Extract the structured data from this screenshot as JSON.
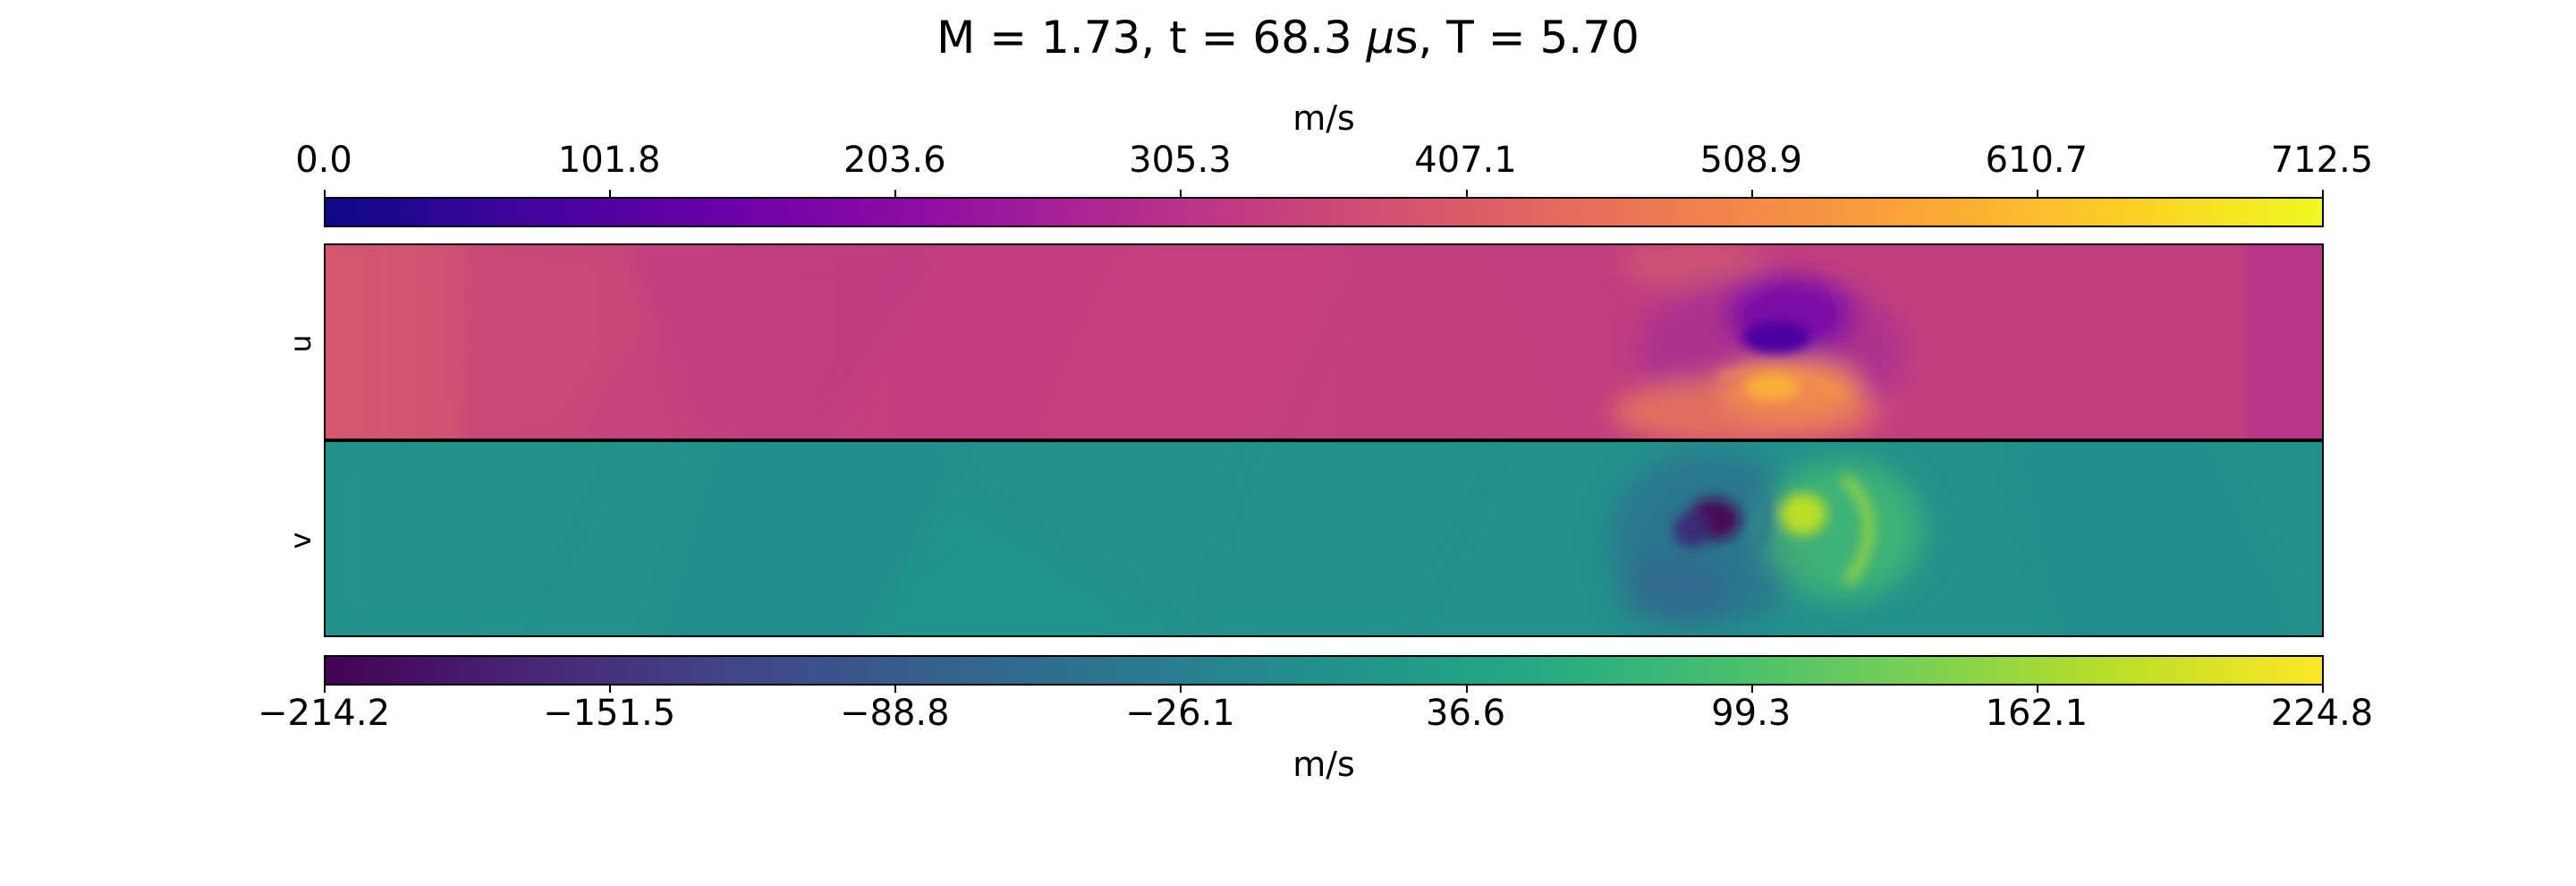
{
  "chart_data": [
    {
      "type": "heatmap",
      "title": "M = 1.73, t = 68.3 μs, T = 5.70",
      "title_parts": {
        "prefix": "M = 1.73, t = 68.3 ",
        "mu": "μ",
        "suffix": "s, T = 5.70"
      },
      "ylabel": "u",
      "colormap": "plasma",
      "colorbar": {
        "label": "m/s",
        "position": "top",
        "ticks": [
          "0.0",
          "101.8",
          "203.6",
          "305.3",
          "407.1",
          "508.9",
          "610.7",
          "712.5"
        ],
        "range": [
          0.0,
          712.5
        ]
      },
      "background_value": 430,
      "colors": {
        "low": "#0d0887",
        "mid": "#cc4778",
        "high": "#f0f921",
        "background": "#c23f7f"
      }
    },
    {
      "type": "heatmap",
      "ylabel": "v",
      "colormap": "viridis",
      "colorbar": {
        "label": "m/s",
        "position": "bottom",
        "ticks": [
          "−214.2",
          "−151.5",
          "−88.8",
          "−26.1",
          "36.6",
          "99.3",
          "162.1",
          "224.8"
        ],
        "range": [
          -214.2,
          224.8
        ]
      },
      "background_value": 10,
      "colors": {
        "low": "#440154",
        "mid": "#21918c",
        "high": "#fde725",
        "background": "#23908b"
      }
    }
  ]
}
